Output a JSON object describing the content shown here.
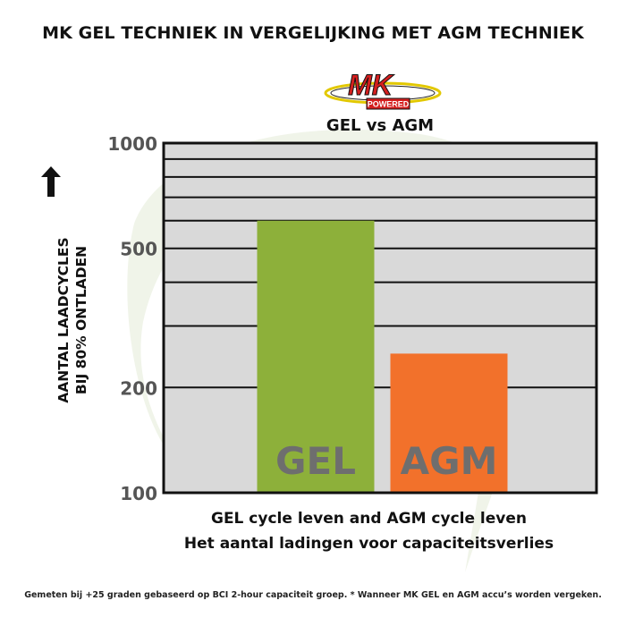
{
  "header": {
    "title": "MK GEL TECHNIEK IN VERGELIJKING MET AGM TECHNIEK"
  },
  "logo": {
    "word": "MK",
    "tagline": "POWERED"
  },
  "chart_data": {
    "type": "bar",
    "title": "GEL vs AGM",
    "ylabel_line1": "AANTAL LAADCYCLES",
    "ylabel_line2": "BIJ 80% ONTLADEN",
    "xlabel_line1": "GEL cycle leven and AGM cycle leven",
    "xlabel_line2": "Het aantal ladingen voor capaciteitsverlies",
    "y_scale": "log",
    "ylim": [
      100,
      1000
    ],
    "yticks": [
      100,
      200,
      500,
      1000
    ],
    "gridlines": [
      100,
      200,
      300,
      400,
      500,
      600,
      700,
      800,
      900,
      1000
    ],
    "grid": true,
    "categories": [
      "GEL",
      "AGM"
    ],
    "values": [
      600,
      250
    ],
    "colors": [
      "#8db03a",
      "#f2712b"
    ],
    "label_color": "#6e6e6e",
    "plot_background": "#d9d9d9"
  },
  "footnote": "Gemeten bij +25 graden gebaseerd op BCI 2-hour capaciteit groep. * Wanneer MK GEL en AGM accu’s worden vergeken."
}
